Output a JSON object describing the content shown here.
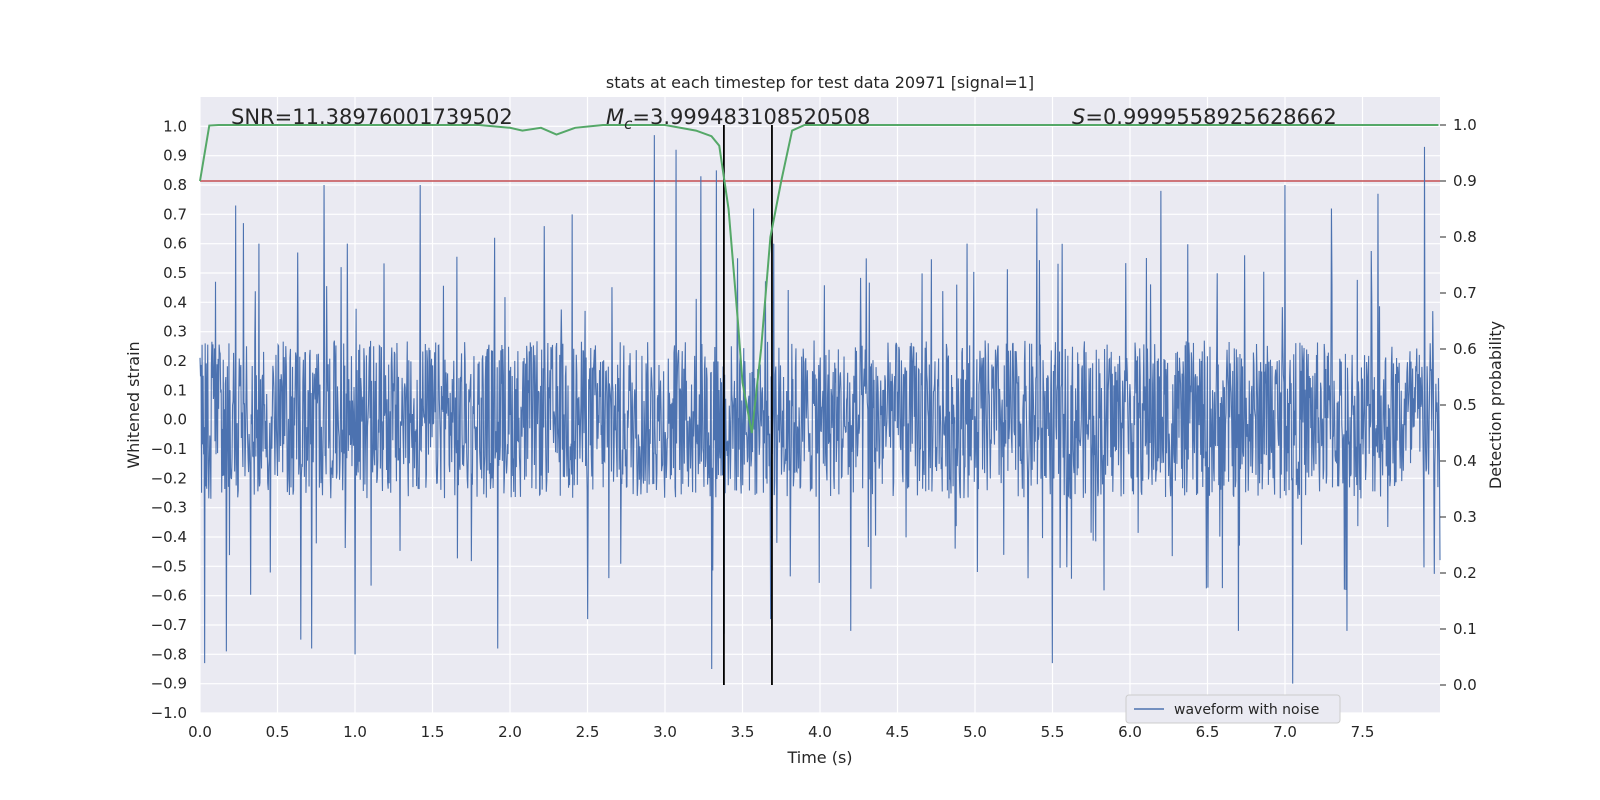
{
  "chart_data": {
    "type": "line",
    "title": "stats at each timestep for test data 20971 [signal=1]",
    "xlabel": "Time (s)",
    "ylabel": "Whitened strain",
    "y2label": "Detection probability",
    "xlim": [
      0.0,
      8.0
    ],
    "ylim": [
      -1.0,
      1.1
    ],
    "y2lim": [
      -0.05,
      1.05
    ],
    "x_ticks": [
      0.0,
      0.5,
      1.0,
      1.5,
      2.0,
      2.5,
      3.0,
      3.5,
      4.0,
      4.5,
      5.0,
      5.5,
      6.0,
      6.5,
      7.0,
      7.5
    ],
    "x_tick_labels": [
      "0.0",
      "0.5",
      "1.0",
      "1.5",
      "2.0",
      "2.5",
      "3.0",
      "3.5",
      "4.0",
      "4.5",
      "5.0",
      "5.5",
      "6.0",
      "6.5",
      "7.0",
      "7.5"
    ],
    "y_ticks": [
      -1.0,
      -0.9,
      -0.8,
      -0.7,
      -0.6,
      -0.5,
      -0.4,
      -0.3,
      -0.2,
      -0.1,
      0.0,
      0.1,
      0.2,
      0.3,
      0.4,
      0.5,
      0.6,
      0.7,
      0.8,
      0.9,
      1.0
    ],
    "y_tick_labels": [
      "−1.0",
      "−0.9",
      "−0.8",
      "−0.7",
      "−0.6",
      "−0.5",
      "−0.4",
      "−0.3",
      "−0.2",
      "−0.1",
      "0.0",
      "0.1",
      "0.2",
      "0.3",
      "0.4",
      "0.5",
      "0.6",
      "0.7",
      "0.8",
      "0.9",
      "1.0"
    ],
    "y2_ticks": [
      0.0,
      0.1,
      0.2,
      0.3,
      0.4,
      0.5,
      0.6,
      0.7,
      0.8,
      0.9,
      1.0
    ],
    "y2_tick_labels": [
      "0.0",
      "0.1",
      "0.2",
      "0.3",
      "0.4",
      "0.5",
      "0.6",
      "0.7",
      "0.8",
      "0.9",
      "1.0"
    ],
    "annotations": {
      "snr": "SNR=11.38976001739502",
      "mc_symbol": "M",
      "mc_sub": "c",
      "mc_value": "=3.999483108520508",
      "s_symbol": "S",
      "s_value": "=0.9999558925628662"
    },
    "legend": {
      "label": "waveform with noise",
      "placement": "lower-right"
    },
    "threshold": {
      "axis": "y2",
      "value": 0.9,
      "color": "#c44e52"
    },
    "vlines": [
      3.38,
      3.69
    ],
    "waveform": {
      "name": "waveform with noise",
      "color": "#4c72b0",
      "duration": 8.0,
      "n_samples": 2400,
      "core_amplitude": 0.27,
      "pos_peaks": [
        [
          0.1,
          0.47
        ],
        [
          0.23,
          0.73
        ],
        [
          0.28,
          0.67
        ],
        [
          0.38,
          0.6
        ],
        [
          0.63,
          0.57
        ],
        [
          0.8,
          0.8
        ],
        [
          0.95,
          0.6
        ],
        [
          1.42,
          0.8
        ],
        [
          1.9,
          0.62
        ],
        [
          2.22,
          0.66
        ],
        [
          2.4,
          0.7
        ],
        [
          2.93,
          0.97
        ],
        [
          3.07,
          0.92
        ],
        [
          3.23,
          0.83
        ],
        [
          3.33,
          0.85
        ],
        [
          3.57,
          0.72
        ],
        [
          3.7,
          0.6
        ],
        [
          4.3,
          0.55
        ],
        [
          4.95,
          0.6
        ],
        [
          5.4,
          0.72
        ],
        [
          6.2,
          0.78
        ],
        [
          7.0,
          0.8
        ],
        [
          7.3,
          0.72
        ],
        [
          7.6,
          0.77
        ],
        [
          7.9,
          0.93
        ]
      ],
      "neg_peaks": [
        [
          0.03,
          -0.83
        ],
        [
          0.17,
          -0.79
        ],
        [
          0.65,
          -0.75
        ],
        [
          0.72,
          -0.78
        ],
        [
          1.0,
          -0.8
        ],
        [
          1.92,
          -0.78
        ],
        [
          2.5,
          -0.68
        ],
        [
          3.3,
          -0.85
        ],
        [
          3.38,
          -0.73
        ],
        [
          3.68,
          -0.68
        ],
        [
          4.2,
          -0.72
        ],
        [
          5.5,
          -0.83
        ],
        [
          6.7,
          -0.72
        ],
        [
          7.05,
          -0.9
        ],
        [
          7.4,
          -0.72
        ]
      ]
    },
    "detection_probability": {
      "name": "detection probability",
      "color": "#55a868",
      "x": [
        0.0,
        0.06,
        0.12,
        0.5,
        1.0,
        1.5,
        1.8,
        2.0,
        2.08,
        2.2,
        2.3,
        2.42,
        2.6,
        3.0,
        3.2,
        3.3,
        3.35,
        3.41,
        3.47,
        3.5,
        3.56,
        3.62,
        3.68,
        3.75,
        3.82,
        3.9,
        4.5,
        5.5,
        6.5,
        7.5,
        7.99
      ],
      "y": [
        0.9,
        0.999,
        1.0,
        1.0,
        1.0,
        1.0,
        1.0,
        0.995,
        0.99,
        0.995,
        0.983,
        0.995,
        1.0,
        1.0,
        0.99,
        0.98,
        0.963,
        0.85,
        0.65,
        0.54,
        0.45,
        0.6,
        0.8,
        0.9,
        0.99,
        1.0,
        1.0,
        1.0,
        1.0,
        1.0,
        1.0
      ]
    }
  }
}
